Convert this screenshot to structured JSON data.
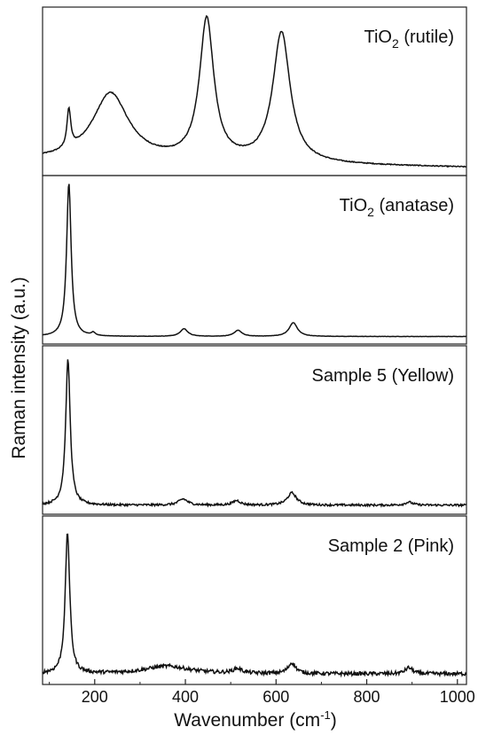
{
  "chart_data": {
    "type": "line",
    "xlabel": "Wavenumber (cm⁻¹)",
    "xlabel_parts": {
      "base": "Wavenumber (cm",
      "sup": "-1",
      "tail": ")"
    },
    "ylabel": "Raman intensity (a.u.)",
    "xlim": [
      85,
      1020
    ],
    "xticks": [
      "200",
      "400",
      "600",
      "800",
      "1000"
    ],
    "xtick_values": [
      200,
      400,
      600,
      800,
      1000
    ],
    "layout": "stacked-panels",
    "panels": [
      {
        "title": "TiO2 (rutile)",
        "title_parts": {
          "base": "TiO",
          "sub": "2",
          "tail": " (rutile)"
        },
        "baseline": 0.07,
        "slope": 5e-05,
        "peaks": [
          {
            "x": 143,
            "h": 0.25,
            "w": 5
          },
          {
            "x": 235,
            "h": 0.44,
            "w": 48
          },
          {
            "x": 447,
            "h": 0.92,
            "w": 19
          },
          {
            "x": 612,
            "h": 0.85,
            "w": 23
          }
        ],
        "noise": 0.003
      },
      {
        "title": "TiO2 (anatase)",
        "title_parts": {
          "base": "TiO",
          "sub": "2",
          "tail": " (anatase)"
        },
        "baseline": 0.02,
        "slope": 0,
        "peaks": [
          {
            "x": 143,
            "h": 1.0,
            "w": 6
          },
          {
            "x": 197,
            "h": 0.02,
            "w": 5
          },
          {
            "x": 397,
            "h": 0.05,
            "w": 10
          },
          {
            "x": 516,
            "h": 0.04,
            "w": 10
          },
          {
            "x": 638,
            "h": 0.09,
            "w": 11
          }
        ],
        "noise": 0.001
      },
      {
        "title": "Sample 5 (Yellow)",
        "title_parts": {
          "base": "Sample 5 (Yellow)",
          "sub": "",
          "tail": ""
        },
        "baseline": 0.03,
        "slope": 0,
        "peaks": [
          {
            "x": 141,
            "h": 0.95,
            "w": 6
          },
          {
            "x": 395,
            "h": 0.04,
            "w": 12
          },
          {
            "x": 513,
            "h": 0.03,
            "w": 10
          },
          {
            "x": 635,
            "h": 0.08,
            "w": 12
          },
          {
            "x": 893,
            "h": 0.02,
            "w": 10
          }
        ],
        "noise": 0.007
      },
      {
        "title": "Sample 2 (Pink)",
        "title_parts": {
          "base": "Sample 2 (Pink)",
          "sub": "",
          "tail": ""
        },
        "baseline": 0.04,
        "slope": 0,
        "peaks": [
          {
            "x": 140,
            "h": 0.92,
            "w": 6
          },
          {
            "x": 360,
            "h": 0.05,
            "w": 60
          },
          {
            "x": 515,
            "h": 0.03,
            "w": 12
          },
          {
            "x": 635,
            "h": 0.07,
            "w": 10
          },
          {
            "x": 893,
            "h": 0.04,
            "w": 10
          }
        ],
        "noise": 0.012
      }
    ]
  }
}
